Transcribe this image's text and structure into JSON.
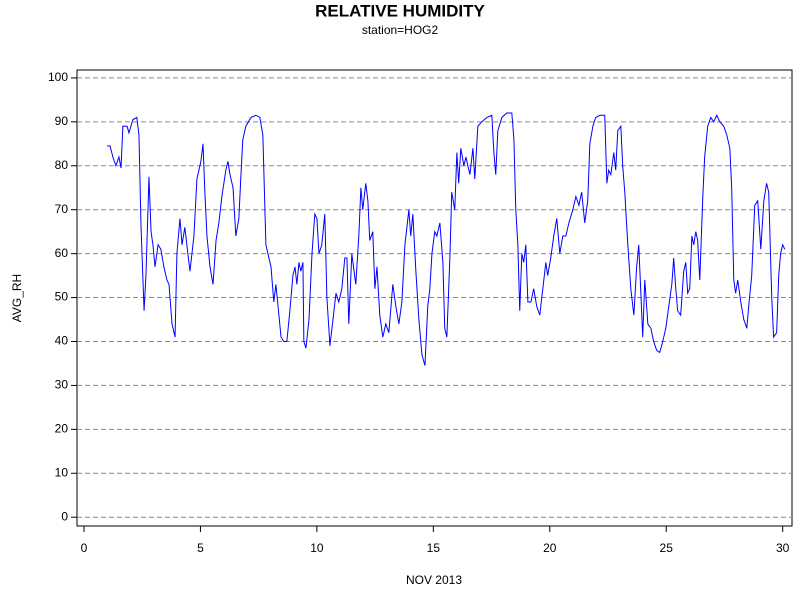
{
  "chart_data": {
    "type": "line",
    "title": "RELATIVE HUMIDITY",
    "subtitle": "station=HOG2",
    "x_label": "NOV 2013",
    "y_label": "AVG_RH",
    "color": "#0000ff",
    "grid": true,
    "xlim": [
      -0.3,
      30.4
    ],
    "ylim": [
      -2,
      101.8
    ],
    "xticks": [
      0,
      5,
      10,
      15,
      20,
      25,
      30
    ],
    "yticks": [
      0,
      10,
      20,
      30,
      40,
      50,
      60,
      70,
      80,
      90,
      100
    ],
    "x": [
      0.99,
      1.12,
      1.24,
      1.37,
      1.5,
      1.59,
      1.67,
      1.85,
      1.93,
      2.1,
      2.27,
      2.36,
      2.45,
      2.58,
      2.66,
      2.79,
      2.88,
      2.96,
      3.05,
      3.18,
      3.3,
      3.43,
      3.56,
      3.65,
      3.78,
      3.91,
      3.99,
      4.12,
      4.21,
      4.33,
      4.46,
      4.55,
      4.72,
      4.85,
      5.02,
      5.11,
      5.19,
      5.28,
      5.41,
      5.54,
      5.67,
      5.79,
      5.92,
      6.09,
      6.18,
      6.27,
      6.4,
      6.52,
      6.65,
      6.74,
      6.82,
      6.95,
      7.17,
      7.38,
      7.55,
      7.68,
      7.81,
      7.94,
      8.03,
      8.15,
      8.24,
      8.37,
      8.46,
      8.58,
      8.71,
      8.84,
      8.97,
      9.06,
      9.14,
      9.23,
      9.31,
      9.4,
      9.44,
      9.53,
      9.66,
      9.79,
      9.91,
      10.0,
      10.09,
      10.21,
      10.34,
      10.43,
      10.56,
      10.69,
      10.82,
      10.94,
      11.07,
      11.2,
      11.29,
      11.37,
      11.5,
      11.67,
      11.8,
      11.89,
      11.97,
      12.1,
      12.19,
      12.27,
      12.4,
      12.49,
      12.58,
      12.7,
      12.83,
      12.96,
      13.09,
      13.26,
      13.39,
      13.52,
      13.65,
      13.78,
      13.95,
      14.03,
      14.12,
      14.25,
      14.38,
      14.51,
      14.64,
      14.76,
      14.85,
      14.94,
      15.06,
      15.15,
      15.28,
      15.41,
      15.49,
      15.58,
      15.71,
      15.79,
      15.92,
      16.01,
      16.09,
      16.18,
      16.31,
      16.4,
      16.48,
      16.57,
      16.7,
      16.78,
      16.91,
      17.08,
      17.3,
      17.51,
      17.6,
      17.68,
      17.77,
      17.94,
      18.15,
      18.37,
      18.46,
      18.54,
      18.63,
      18.71,
      18.8,
      18.88,
      18.97,
      19.06,
      19.19,
      19.31,
      19.44,
      19.57,
      19.7,
      19.83,
      19.91,
      20.04,
      20.17,
      20.3,
      20.43,
      20.56,
      20.69,
      20.82,
      20.99,
      21.12,
      21.25,
      21.37,
      21.5,
      21.63,
      21.72,
      21.85,
      21.97,
      22.15,
      22.36,
      22.45,
      22.53,
      22.62,
      22.75,
      22.83,
      22.92,
      23.05,
      23.13,
      23.22,
      23.35,
      23.48,
      23.61,
      23.73,
      23.82,
      23.91,
      23.99,
      24.08,
      24.21,
      24.34,
      24.46,
      24.59,
      24.72,
      24.85,
      24.98,
      25.11,
      25.24,
      25.32,
      25.41,
      25.49,
      25.62,
      25.75,
      25.84,
      25.92,
      26.01,
      26.1,
      26.18,
      26.27,
      26.35,
      26.44,
      26.57,
      26.65,
      26.78,
      26.91,
      27.04,
      27.17,
      27.3,
      27.47,
      27.6,
      27.73,
      27.81,
      27.9,
      27.98,
      28.07,
      28.2,
      28.33,
      28.46,
      28.54,
      28.67,
      28.8,
      28.93,
      29.06,
      29.19,
      29.31,
      29.4,
      29.53,
      29.61,
      29.74,
      29.83,
      29.91,
      30.0,
      30.09
    ],
    "values": [
      84.5,
      84.5,
      82,
      80,
      82,
      79.5,
      89,
      89,
      87.5,
      90.5,
      91,
      87,
      66,
      47,
      55,
      77.5,
      65,
      62,
      57,
      62,
      61,
      57,
      54,
      53,
      44,
      41,
      60,
      68,
      62,
      66,
      60,
      56,
      64,
      77,
      81,
      85,
      74,
      64,
      57,
      53,
      63,
      67,
      73,
      79,
      81,
      78,
      75,
      64,
      68,
      78,
      86,
      89,
      91,
      91.5,
      91,
      87,
      62,
      59,
      57,
      49,
      53,
      46,
      41,
      40,
      40,
      47,
      55,
      57,
      53,
      58,
      56,
      58,
      40,
      38.5,
      45,
      60,
      69,
      68,
      60,
      62,
      69,
      50,
      39,
      45,
      51,
      49,
      52,
      59,
      59,
      44,
      60,
      53,
      64,
      75,
      70,
      76,
      72,
      63,
      65,
      52,
      57,
      46,
      41,
      44,
      42,
      53,
      48,
      44,
      49,
      62,
      70,
      64,
      69,
      56,
      45,
      37,
      34.5,
      48,
      52,
      60,
      65,
      64,
      67,
      58,
      43,
      41,
      59,
      74,
      70,
      83,
      76,
      84,
      80,
      82,
      80,
      78,
      84,
      77,
      89,
      90,
      91,
      91.5,
      83,
      78,
      88,
      91,
      92,
      92,
      86,
      70,
      62,
      47,
      60,
      58,
      62,
      49,
      49,
      52,
      48,
      46,
      52,
      58,
      55,
      59,
      64,
      68,
      60,
      64,
      64,
      67,
      70,
      73,
      71,
      74,
      67,
      72,
      85,
      89,
      91,
      91.5,
      91.5,
      76,
      79,
      78,
      83,
      79,
      88,
      89,
      80,
      74,
      62,
      52,
      46,
      57,
      62,
      51,
      41,
      54,
      44,
      43,
      40,
      38,
      37.5,
      40,
      43,
      48,
      53,
      59,
      52,
      47,
      46,
      56,
      58,
      51,
      52,
      64,
      62,
      65,
      63,
      54,
      73,
      82,
      89,
      91,
      90,
      91.5,
      90,
      89,
      87,
      84,
      75,
      54,
      51,
      54,
      49,
      45,
      43,
      48,
      55,
      71,
      72,
      61,
      72,
      76,
      74,
      50,
      41,
      42,
      55,
      60,
      62,
      61
    ]
  }
}
